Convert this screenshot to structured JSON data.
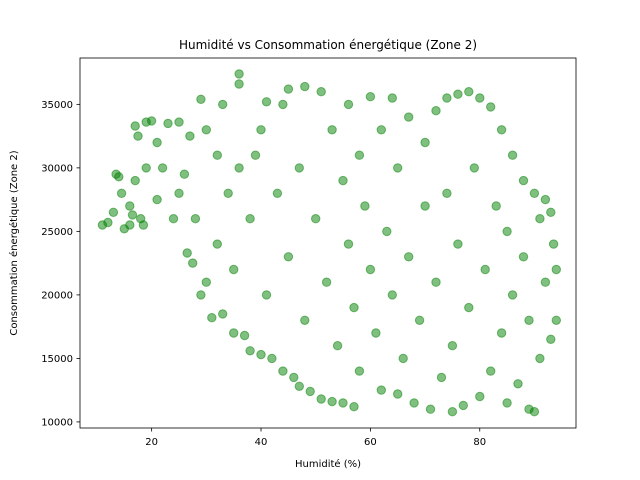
{
  "chart_data": {
    "type": "scatter",
    "title": "Humidité vs Consommation énergétique (Zone 2)",
    "xlabel": "Humidité (%)",
    "ylabel": "Consommation énergétique (Zone 2)",
    "xlim": [
      6.9,
      97.6
    ],
    "ylim": [
      9520,
      38650
    ],
    "x_ticks": [
      20,
      40,
      60,
      80
    ],
    "y_ticks": [
      10000,
      15000,
      20000,
      25000,
      30000,
      35000
    ],
    "grid": false,
    "color": "#008000",
    "alpha": 0.5,
    "points": [
      [
        11.0,
        25500
      ],
      [
        12.0,
        25700
      ],
      [
        13.0,
        26500
      ],
      [
        13.5,
        29500
      ],
      [
        14.0,
        29300
      ],
      [
        14.5,
        28000
      ],
      [
        15.0,
        25200
      ],
      [
        16.0,
        25500
      ],
      [
        16.0,
        27000
      ],
      [
        16.5,
        26300
      ],
      [
        17.0,
        29000
      ],
      [
        17.0,
        33300
      ],
      [
        17.5,
        32500
      ],
      [
        18.0,
        26000
      ],
      [
        18.5,
        25500
      ],
      [
        19.0,
        30000
      ],
      [
        19.0,
        33600
      ],
      [
        20.0,
        33700
      ],
      [
        21.0,
        27500
      ],
      [
        21.0,
        32000
      ],
      [
        22.0,
        30000
      ],
      [
        23.0,
        33500
      ],
      [
        24.0,
        26000
      ],
      [
        25.0,
        33600
      ],
      [
        25.0,
        28000
      ],
      [
        26.0,
        29500
      ],
      [
        26.5,
        23300
      ],
      [
        27.0,
        32500
      ],
      [
        27.5,
        22500
      ],
      [
        28.0,
        26000
      ],
      [
        29.0,
        20000
      ],
      [
        29.0,
        35400
      ],
      [
        30.0,
        21000
      ],
      [
        30.0,
        33000
      ],
      [
        31.0,
        18200
      ],
      [
        32.0,
        31000
      ],
      [
        32.0,
        24000
      ],
      [
        33.0,
        18500
      ],
      [
        33.0,
        35000
      ],
      [
        34.0,
        28000
      ],
      [
        35.0,
        17000
      ],
      [
        35.0,
        22000
      ],
      [
        36.0,
        37400
      ],
      [
        36.0,
        36600
      ],
      [
        36.0,
        30000
      ],
      [
        37.0,
        16800
      ],
      [
        38.0,
        15600
      ],
      [
        38.0,
        26000
      ],
      [
        39.0,
        31000
      ],
      [
        40.0,
        15300
      ],
      [
        40.0,
        33000
      ],
      [
        41.0,
        35200
      ],
      [
        41.0,
        20000
      ],
      [
        42.0,
        15000
      ],
      [
        43.0,
        28000
      ],
      [
        44.0,
        14000
      ],
      [
        44.0,
        35000
      ],
      [
        45.0,
        36200
      ],
      [
        45.0,
        23000
      ],
      [
        46.0,
        13500
      ],
      [
        47.0,
        12800
      ],
      [
        47.0,
        30000
      ],
      [
        48.0,
        36400
      ],
      [
        48.0,
        18000
      ],
      [
        49.0,
        12400
      ],
      [
        50.0,
        26000
      ],
      [
        51.0,
        36000
      ],
      [
        51.0,
        11800
      ],
      [
        52.0,
        21000
      ],
      [
        53.0,
        11600
      ],
      [
        53.0,
        33000
      ],
      [
        54.0,
        16000
      ],
      [
        55.0,
        11500
      ],
      [
        55.0,
        29000
      ],
      [
        56.0,
        35000
      ],
      [
        56.0,
        24000
      ],
      [
        57.0,
        11200
      ],
      [
        57.0,
        19000
      ],
      [
        58.0,
        31000
      ],
      [
        58.0,
        14000
      ],
      [
        59.0,
        27000
      ],
      [
        60.0,
        35600
      ],
      [
        60.0,
        22000
      ],
      [
        61.0,
        17000
      ],
      [
        62.0,
        33000
      ],
      [
        62.0,
        12500
      ],
      [
        63.0,
        25000
      ],
      [
        64.0,
        35500
      ],
      [
        64.0,
        20000
      ],
      [
        65.0,
        12200
      ],
      [
        65.0,
        30000
      ],
      [
        66.0,
        15000
      ],
      [
        67.0,
        34000
      ],
      [
        67.0,
        23000
      ],
      [
        68.0,
        11500
      ],
      [
        69.0,
        18000
      ],
      [
        70.0,
        27000
      ],
      [
        70.0,
        32000
      ],
      [
        71.0,
        11000
      ],
      [
        72.0,
        34500
      ],
      [
        72.0,
        21000
      ],
      [
        73.0,
        13500
      ],
      [
        74.0,
        35500
      ],
      [
        74.0,
        28000
      ],
      [
        75.0,
        10800
      ],
      [
        75.0,
        16000
      ],
      [
        76.0,
        35800
      ],
      [
        76.0,
        24000
      ],
      [
        77.0,
        11300
      ],
      [
        78.0,
        36000
      ],
      [
        78.0,
        19000
      ],
      [
        79.0,
        30000
      ],
      [
        80.0,
        35500
      ],
      [
        80.0,
        12000
      ],
      [
        81.0,
        22000
      ],
      [
        82.0,
        34800
      ],
      [
        82.0,
        14000
      ],
      [
        83.0,
        27000
      ],
      [
        84.0,
        33000
      ],
      [
        84.0,
        17000
      ],
      [
        85.0,
        11500
      ],
      [
        85.0,
        25000
      ],
      [
        86.0,
        31000
      ],
      [
        86.0,
        20000
      ],
      [
        87.0,
        13000
      ],
      [
        88.0,
        29000
      ],
      [
        88.0,
        23000
      ],
      [
        89.0,
        11000
      ],
      [
        89.0,
        18000
      ],
      [
        90.0,
        10800
      ],
      [
        90.0,
        28000
      ],
      [
        91.0,
        26000
      ],
      [
        91.0,
        15000
      ],
      [
        92.0,
        27500
      ],
      [
        92.0,
        21000
      ],
      [
        93.0,
        26500
      ],
      [
        93.0,
        16500
      ],
      [
        93.5,
        24000
      ],
      [
        94.0,
        22000
      ],
      [
        94.0,
        18000
      ]
    ]
  }
}
